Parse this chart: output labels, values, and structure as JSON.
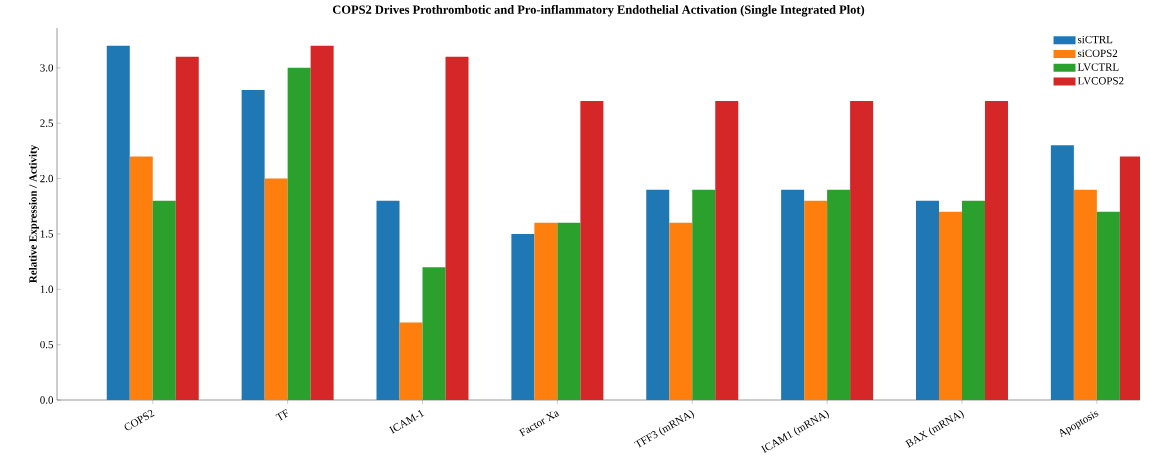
{
  "chart_data": {
    "type": "bar",
    "title": "COPS2 Drives Prothrombotic and Pro-inflammatory Endothelial Activation (Single Integrated Plot)",
    "ylabel": "Relative Expression / Activity",
    "categories": [
      "COPS2",
      "TF",
      "ICAM-1",
      "Factor Xa",
      "TFF3 (mRNA)",
      "ICAM1 (mRNA)",
      "BAX (mRNA)",
      "Apoptosis"
    ],
    "series": [
      {
        "name": "siCTRL",
        "color": "#1f77b4",
        "values": [
          3.2,
          2.8,
          1.8,
          1.5,
          1.9,
          1.9,
          1.8,
          2.3
        ]
      },
      {
        "name": "siCOPS2",
        "color": "#ff7f0e",
        "values": [
          2.2,
          2.0,
          0.7,
          1.6,
          1.6,
          1.8,
          1.7,
          1.9
        ]
      },
      {
        "name": "LVCTRL",
        "color": "#2ca02c",
        "values": [
          1.8,
          3.0,
          1.2,
          1.6,
          1.9,
          1.9,
          1.8,
          1.7
        ]
      },
      {
        "name": "LVCOPS2",
        "color": "#d62728",
        "values": [
          3.1,
          3.2,
          3.1,
          2.7,
          2.7,
          2.7,
          2.7,
          2.2
        ]
      }
    ],
    "ylim": [
      0,
      3.36
    ],
    "yticks": [
      {
        "value": 0,
        "label": "0.0"
      },
      0.5,
      {
        "value": 1,
        "label": "1.0"
      },
      1.5,
      {
        "value": 2,
        "label": "2.0"
      },
      2.5,
      {
        "value": 3,
        "label": "3.0"
      }
    ],
    "grid": false,
    "legend": "top right"
  }
}
